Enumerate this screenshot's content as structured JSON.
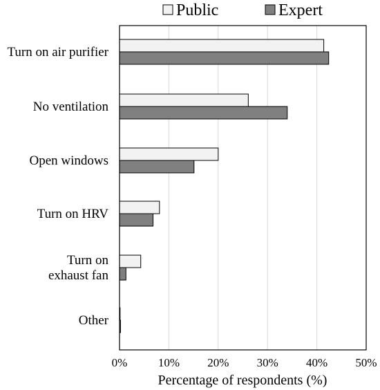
{
  "chart_data": {
    "type": "bar",
    "orientation": "horizontal",
    "categories": [
      [
        "Turn on air purifier"
      ],
      [
        "No ventilation"
      ],
      [
        "Open windows"
      ],
      [
        "Turn on HRV"
      ],
      [
        "Turn on",
        "exhaust fan"
      ],
      [
        "Other"
      ]
    ],
    "series": [
      {
        "name": "Public",
        "values": [
          41.4,
          26.1,
          20.0,
          8.1,
          4.3,
          0.0
        ],
        "color": "#f2f2f2"
      },
      {
        "name": "Expert",
        "values": [
          42.4,
          34.0,
          15.1,
          6.8,
          1.3,
          0.2
        ],
        "color": "#808080"
      }
    ],
    "xlabel": "Percentage of respondents (%)",
    "ylabel": "",
    "title": "",
    "xlim": [
      0,
      50
    ],
    "xticks": [
      0,
      10,
      20,
      30,
      40,
      50
    ],
    "xtick_labels": [
      "0%",
      "10%",
      "20%",
      "30%",
      "40%",
      "50%"
    ],
    "grid": "vertical",
    "legend_position": "top"
  }
}
